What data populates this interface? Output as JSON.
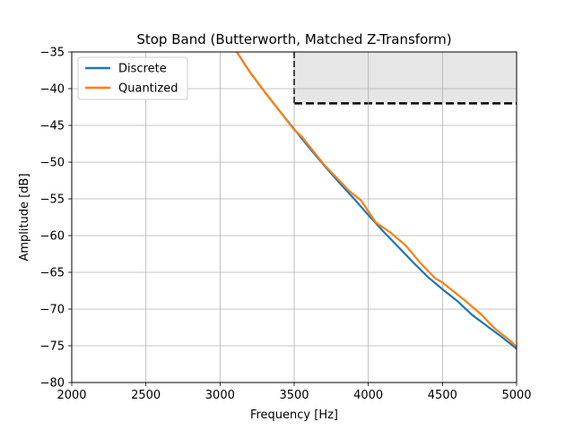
{
  "chart_data": {
    "type": "line",
    "title": "Stop Band (Butterworth, Matched Z-Transform)",
    "xlabel": "Frequency [Hz]",
    "ylabel": "Amplitude [dB]",
    "xlim": [
      2000,
      5000
    ],
    "ylim": [
      -80,
      -35
    ],
    "xticks": [
      2000,
      2500,
      3000,
      3500,
      4000,
      4500,
      5000
    ],
    "yticks": [
      -80,
      -75,
      -70,
      -65,
      -60,
      -55,
      -50,
      -45,
      -40,
      -35
    ],
    "grid": true,
    "legend_position": "top-left",
    "stopband_region": {
      "x_start": 3500,
      "x_end": 5000,
      "y_limit": -42,
      "fill_color": "#e6e6e6",
      "line_style": "dashed",
      "line_color": "#000000"
    },
    "series": [
      {
        "name": "Discrete",
        "color": "#1f77b4",
        "x": [
          3000,
          3100,
          3200,
          3300,
          3400,
          3500,
          3600,
          3700,
          3800,
          3900,
          4000,
          4100,
          4200,
          4300,
          4400,
          4500,
          4600,
          4700,
          4800,
          4900,
          5000
        ],
        "y": [
          -31.5,
          -34.6,
          -37.7,
          -40.4,
          -43.0,
          -45.5,
          -48.0,
          -50.4,
          -52.7,
          -54.9,
          -57.2,
          -59.4,
          -61.5,
          -63.6,
          -65.6,
          -67.3,
          -68.9,
          -70.8,
          -72.3,
          -73.8,
          -75.4
        ]
      },
      {
        "name": "Quantized",
        "color": "#ff7f0e",
        "x": [
          3000,
          3100,
          3200,
          3300,
          3400,
          3500,
          3550,
          3700,
          3870,
          3950,
          4050,
          4150,
          4250,
          4350,
          4450,
          4500,
          4650,
          4760,
          4850,
          4950,
          5000
        ],
        "y": [
          -31.5,
          -34.6,
          -37.7,
          -40.4,
          -43.0,
          -45.6,
          -46.5,
          -50.3,
          -53.9,
          -55.2,
          -58.2,
          -59.6,
          -61.3,
          -63.7,
          -65.8,
          -66.4,
          -68.8,
          -70.7,
          -72.6,
          -74.2,
          -75.1
        ]
      }
    ]
  }
}
